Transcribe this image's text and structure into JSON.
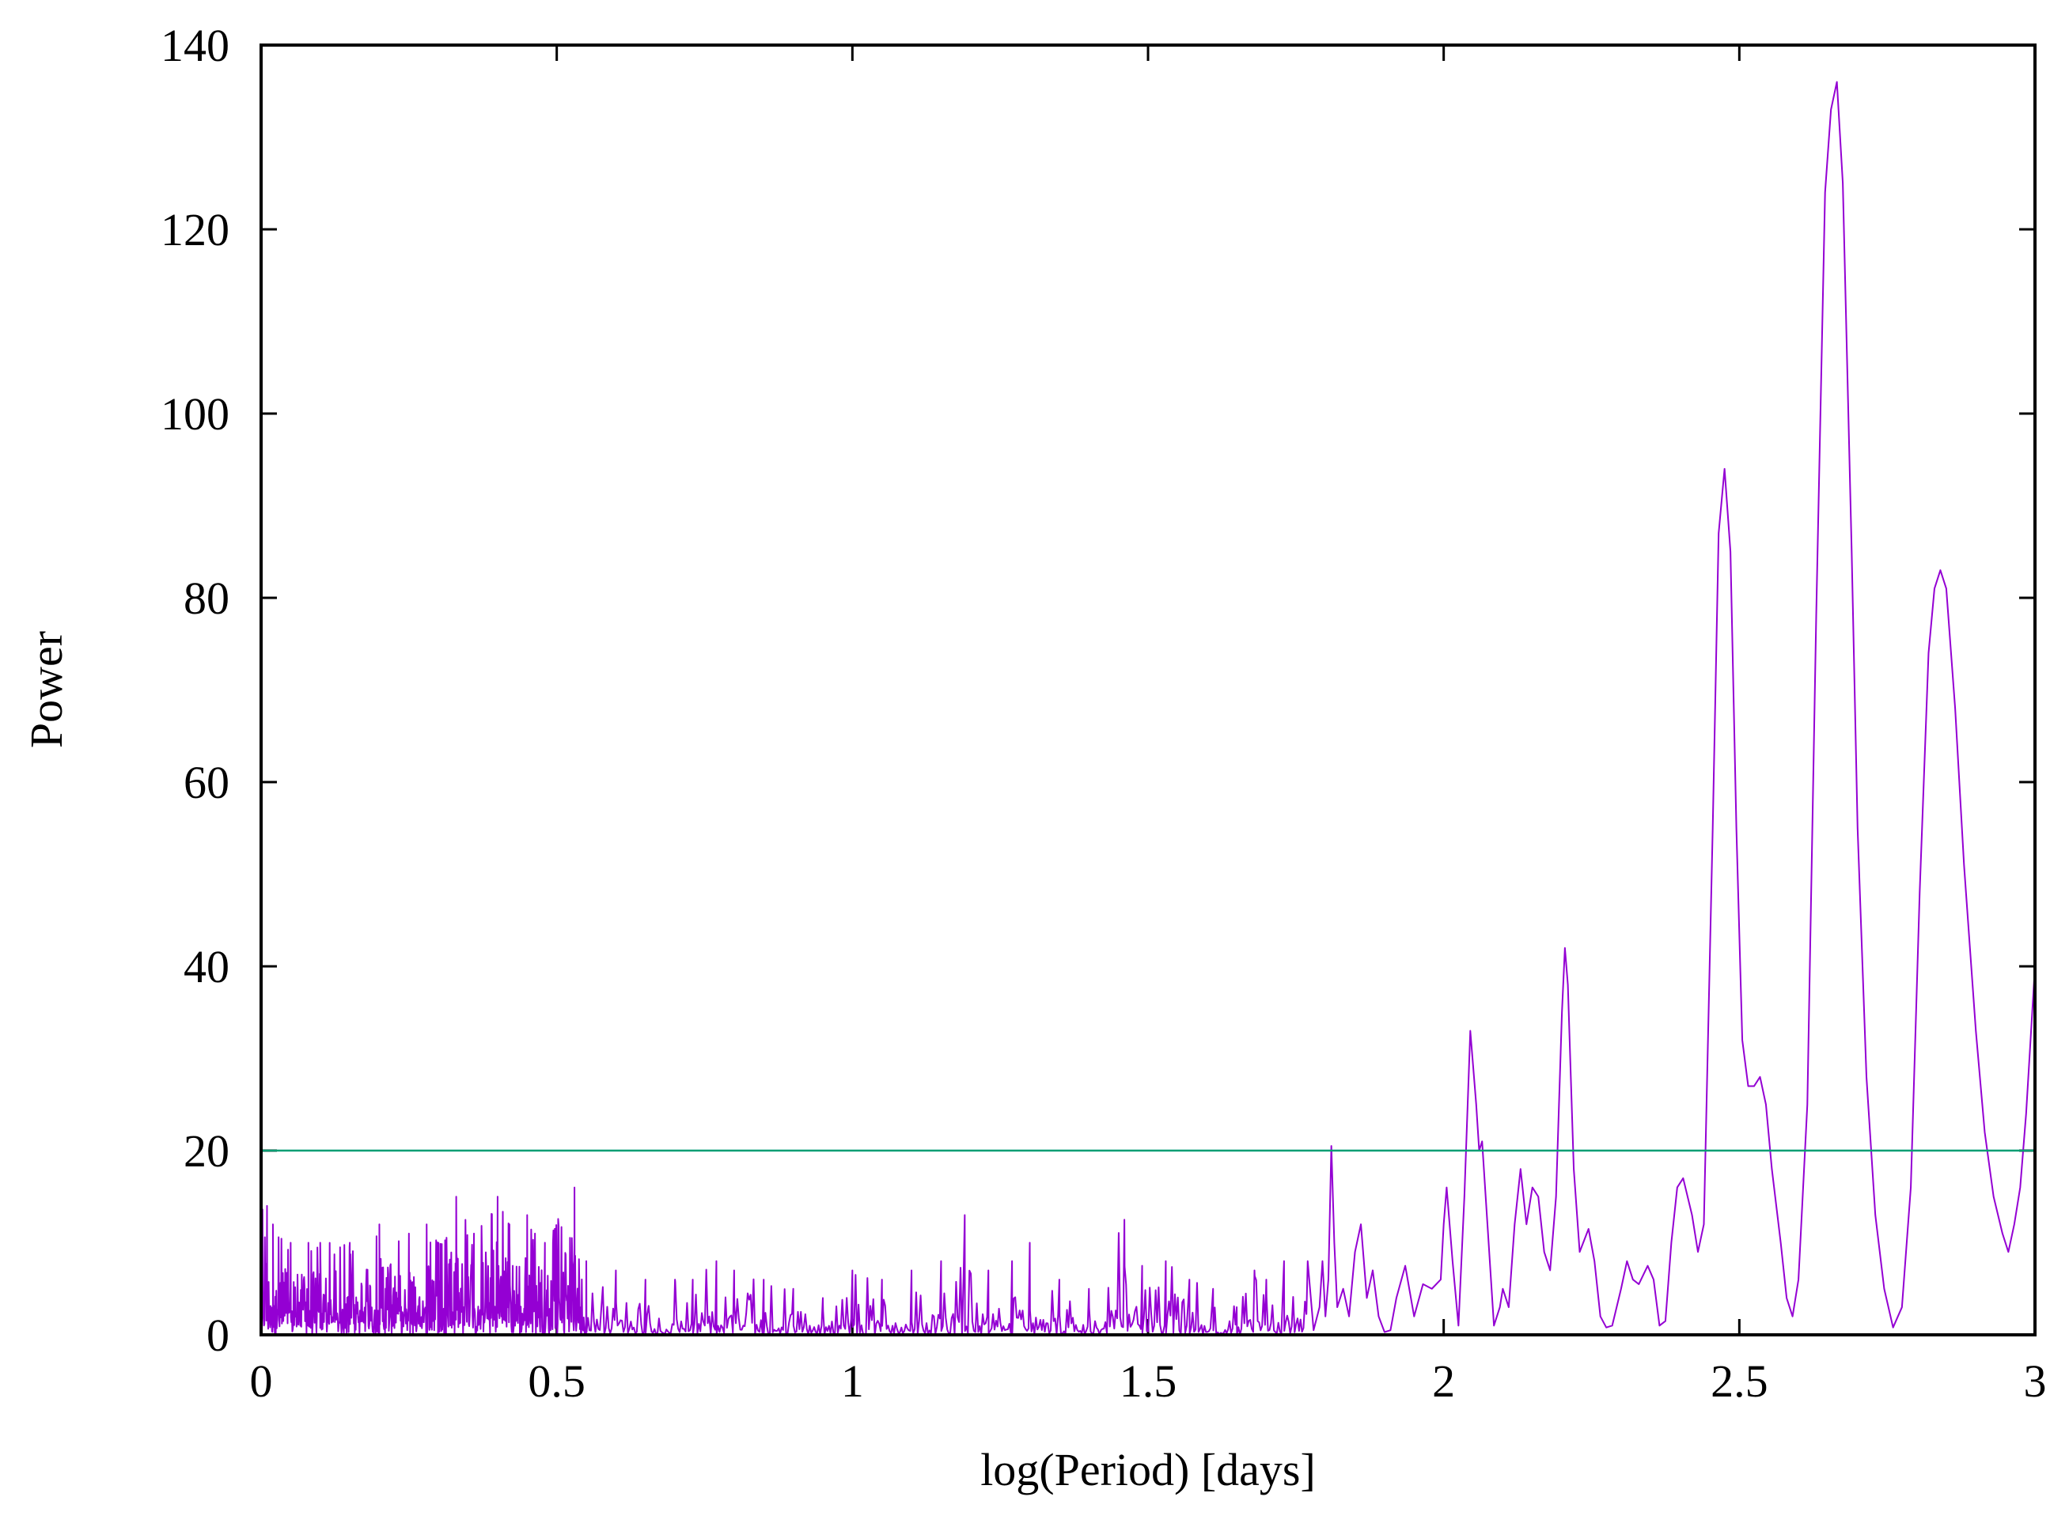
{
  "chart_data": {
    "type": "line",
    "xlabel": "log(Period) [days]",
    "ylabel": "Power",
    "xlim": [
      0,
      3
    ],
    "ylim": [
      0,
      140
    ],
    "x_ticks": [
      0,
      0.5,
      1,
      1.5,
      2,
      2.5,
      3
    ],
    "x_tick_labels": [
      "0",
      "0.5",
      "1",
      "1.5",
      "2",
      "2.5",
      "3"
    ],
    "y_ticks": [
      0,
      20,
      40,
      60,
      80,
      100,
      120,
      140
    ],
    "y_tick_labels": [
      "0",
      "20",
      "40",
      "60",
      "80",
      "100",
      "120",
      "140"
    ],
    "grid": false,
    "legend": "none",
    "series": [
      {
        "color": "#9400d3",
        "noise_region": [
          [
            0.0,
            23
          ],
          [
            0.01,
            14
          ],
          [
            0.02,
            12
          ],
          [
            0.05,
            10
          ],
          [
            0.08,
            10
          ],
          [
            0.1,
            10
          ],
          [
            0.15,
            10
          ],
          [
            0.2,
            12
          ],
          [
            0.25,
            11
          ],
          [
            0.28,
            12
          ],
          [
            0.3,
            10
          ],
          [
            0.33,
            15
          ],
          [
            0.36,
            11
          ],
          [
            0.4,
            15
          ],
          [
            0.42,
            12
          ],
          [
            0.45,
            13
          ],
          [
            0.48,
            10
          ],
          [
            0.53,
            16
          ],
          [
            0.55,
            8
          ],
          [
            0.6,
            7
          ],
          [
            0.65,
            6
          ],
          [
            0.7,
            6
          ],
          [
            0.73,
            6
          ],
          [
            0.77,
            8
          ],
          [
            0.8,
            7
          ],
          [
            0.85,
            6
          ],
          [
            0.9,
            5
          ],
          [
            0.95,
            4
          ],
          [
            1.0,
            7
          ],
          [
            1.05,
            6
          ],
          [
            1.1,
            7
          ],
          [
            1.15,
            8
          ],
          [
            1.19,
            13
          ],
          [
            1.23,
            7
          ],
          [
            1.27,
            8
          ],
          [
            1.3,
            10
          ],
          [
            1.35,
            6
          ],
          [
            1.4,
            5
          ],
          [
            1.46,
            12.5
          ],
          [
            1.49,
            7.5
          ],
          [
            1.53,
            8
          ],
          [
            1.57,
            6
          ],
          [
            1.61,
            5
          ],
          [
            1.65,
            3
          ],
          [
            1.68,
            7
          ],
          [
            1.7,
            6
          ],
          [
            1.73,
            8
          ],
          [
            1.77,
            8
          ]
        ],
        "points": [
          [
            1.78,
            0.5
          ],
          [
            1.79,
            3
          ],
          [
            1.795,
            8
          ],
          [
            1.8,
            2
          ],
          [
            1.805,
            6
          ],
          [
            1.81,
            20.5
          ],
          [
            1.815,
            10
          ],
          [
            1.82,
            3
          ],
          [
            1.83,
            5
          ],
          [
            1.84,
            2
          ],
          [
            1.85,
            9
          ],
          [
            1.86,
            12
          ],
          [
            1.87,
            4
          ],
          [
            1.88,
            7
          ],
          [
            1.89,
            2
          ],
          [
            1.9,
            0.3
          ],
          [
            1.91,
            0.5
          ],
          [
            1.92,
            4
          ],
          [
            1.935,
            7.5
          ],
          [
            1.95,
            2
          ],
          [
            1.965,
            5.5
          ],
          [
            1.98,
            5
          ],
          [
            1.995,
            6
          ],
          [
            2.0,
            12
          ],
          [
            2.005,
            16
          ],
          [
            2.015,
            8
          ],
          [
            2.025,
            1
          ],
          [
            2.035,
            15
          ],
          [
            2.045,
            33
          ],
          [
            2.055,
            25
          ],
          [
            2.06,
            20
          ],
          [
            2.065,
            21
          ],
          [
            2.075,
            11
          ],
          [
            2.085,
            1
          ],
          [
            2.095,
            3
          ],
          [
            2.1,
            5
          ],
          [
            2.11,
            3
          ],
          [
            2.12,
            12
          ],
          [
            2.13,
            18
          ],
          [
            2.14,
            12
          ],
          [
            2.15,
            16
          ],
          [
            2.16,
            15
          ],
          [
            2.17,
            9
          ],
          [
            2.18,
            7
          ],
          [
            2.19,
            15
          ],
          [
            2.2,
            35
          ],
          [
            2.205,
            42
          ],
          [
            2.21,
            38
          ],
          [
            2.22,
            18
          ],
          [
            2.23,
            9
          ],
          [
            2.245,
            11.5
          ],
          [
            2.255,
            8
          ],
          [
            2.265,
            2
          ],
          [
            2.275,
            0.8
          ],
          [
            2.285,
            1
          ],
          [
            2.3,
            5
          ],
          [
            2.31,
            8
          ],
          [
            2.32,
            6
          ],
          [
            2.33,
            5.5
          ],
          [
            2.345,
            7.5
          ],
          [
            2.355,
            6
          ],
          [
            2.365,
            1
          ],
          [
            2.375,
            1.5
          ],
          [
            2.385,
            10
          ],
          [
            2.395,
            16
          ],
          [
            2.405,
            17
          ],
          [
            2.42,
            13
          ],
          [
            2.43,
            9
          ],
          [
            2.44,
            12
          ],
          [
            2.455,
            55
          ],
          [
            2.465,
            87
          ],
          [
            2.475,
            94
          ],
          [
            2.485,
            85
          ],
          [
            2.495,
            55
          ],
          [
            2.505,
            32
          ],
          [
            2.515,
            27
          ],
          [
            2.525,
            27
          ],
          [
            2.535,
            28
          ],
          [
            2.545,
            25
          ],
          [
            2.555,
            18
          ],
          [
            2.57,
            10
          ],
          [
            2.58,
            4
          ],
          [
            2.59,
            2
          ],
          [
            2.6,
            6
          ],
          [
            2.615,
            25
          ],
          [
            2.63,
            78
          ],
          [
            2.645,
            124
          ],
          [
            2.655,
            133
          ],
          [
            2.665,
            136
          ],
          [
            2.675,
            125
          ],
          [
            2.69,
            85
          ],
          [
            2.7,
            55
          ],
          [
            2.715,
            28
          ],
          [
            2.73,
            13
          ],
          [
            2.745,
            5
          ],
          [
            2.76,
            0.8
          ],
          [
            2.775,
            3
          ],
          [
            2.79,
            16
          ],
          [
            2.805,
            48
          ],
          [
            2.82,
            74
          ],
          [
            2.83,
            81
          ],
          [
            2.84,
            83
          ],
          [
            2.85,
            81
          ],
          [
            2.865,
            68
          ],
          [
            2.88,
            51
          ],
          [
            2.9,
            33
          ],
          [
            2.915,
            22
          ],
          [
            2.93,
            15
          ],
          [
            2.945,
            11
          ],
          [
            2.955,
            9
          ],
          [
            2.965,
            12
          ],
          [
            2.975,
            16
          ],
          [
            2.985,
            24
          ],
          [
            3.0,
            40
          ]
        ]
      },
      {
        "color": "#009e73",
        "points": [
          [
            0,
            20
          ],
          [
            3,
            20
          ]
        ]
      }
    ]
  }
}
